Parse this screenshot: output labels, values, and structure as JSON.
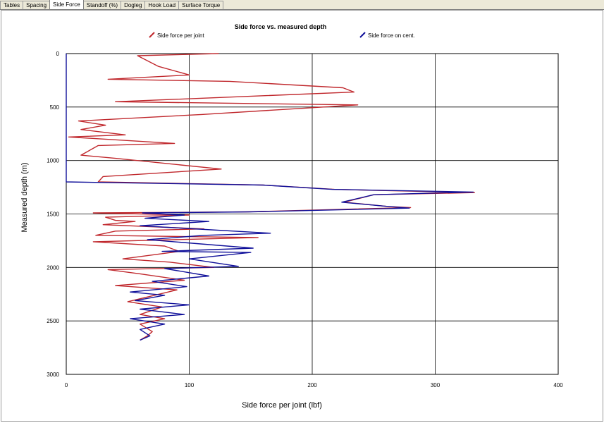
{
  "tabs": [
    {
      "label": "Tables",
      "active": false
    },
    {
      "label": "Spacing",
      "active": false
    },
    {
      "label": "Side Force",
      "active": true
    },
    {
      "label": "Standoff (%)",
      "active": false
    },
    {
      "label": "Dogleg",
      "active": false
    },
    {
      "label": "Hook Load",
      "active": false
    },
    {
      "label": "Surface Torque",
      "active": false
    }
  ],
  "chart_data": {
    "type": "line",
    "title": "Side force vs. measured depth",
    "xlabel": "Side force per joint (lbf)",
    "ylabel": "Measured depth (m)",
    "xlim": [
      0,
      400
    ],
    "ylim": [
      3000,
      0
    ],
    "x_ticks": [
      "0",
      "100",
      "200",
      "300",
      "400"
    ],
    "y_ticks": [
      "0",
      "500",
      "1000",
      "1500",
      "2000",
      "2500",
      "3000"
    ],
    "y_tick_values": [
      0,
      500,
      1000,
      1500,
      2000,
      2500,
      3000
    ],
    "x_tick_values": [
      0,
      100,
      200,
      300,
      400
    ],
    "grid": true,
    "legend_position": "top",
    "series": [
      {
        "name": "Side force per joint",
        "color": "#c0282d",
        "points": [
          [
            124,
            0
          ],
          [
            58,
            20
          ],
          [
            75,
            120
          ],
          [
            100,
            200
          ],
          [
            34,
            240
          ],
          [
            133,
            260
          ],
          [
            225,
            320
          ],
          [
            234,
            360
          ],
          [
            40,
            450
          ],
          [
            237,
            480
          ],
          [
            110,
            570
          ],
          [
            10,
            630
          ],
          [
            32,
            670
          ],
          [
            12,
            710
          ],
          [
            48,
            760
          ],
          [
            2,
            780
          ],
          [
            88,
            840
          ],
          [
            26,
            860
          ],
          [
            12,
            950
          ],
          [
            40,
            980
          ],
          [
            126,
            1080
          ],
          [
            30,
            1150
          ],
          [
            26,
            1200
          ],
          [
            160,
            1230
          ],
          [
            218,
            1270
          ],
          [
            332,
            1300
          ],
          [
            250,
            1320
          ],
          [
            226,
            1390
          ],
          [
            262,
            1430
          ],
          [
            280,
            1440
          ],
          [
            146,
            1480
          ],
          [
            22,
            1490
          ],
          [
            100,
            1510
          ],
          [
            32,
            1530
          ],
          [
            40,
            1560
          ],
          [
            56,
            1570
          ],
          [
            30,
            1600
          ],
          [
            112,
            1640
          ],
          [
            40,
            1660
          ],
          [
            24,
            1700
          ],
          [
            156,
            1720
          ],
          [
            22,
            1760
          ],
          [
            80,
            1800
          ],
          [
            92,
            1850
          ],
          [
            46,
            1920
          ],
          [
            84,
            1950
          ],
          [
            120,
            2000
          ],
          [
            34,
            2020
          ],
          [
            60,
            2060
          ],
          [
            96,
            2120
          ],
          [
            40,
            2170
          ],
          [
            90,
            2210
          ],
          [
            50,
            2320
          ],
          [
            78,
            2370
          ],
          [
            60,
            2440
          ],
          [
            80,
            2480
          ],
          [
            60,
            2530
          ],
          [
            70,
            2600
          ],
          [
            66,
            2640
          ],
          [
            60,
            2680
          ]
        ]
      },
      {
        "name": "Side force on cent.",
        "color": "#10109a",
        "points": [
          [
            0,
            0
          ],
          [
            0,
            1200
          ],
          [
            160,
            1230
          ],
          [
            216,
            1270
          ],
          [
            331,
            1295
          ],
          [
            250,
            1320
          ],
          [
            224,
            1390
          ],
          [
            262,
            1430
          ],
          [
            279,
            1445
          ],
          [
            150,
            1480
          ],
          [
            62,
            1490
          ],
          [
            96,
            1510
          ],
          [
            64,
            1540
          ],
          [
            116,
            1570
          ],
          [
            60,
            1610
          ],
          [
            166,
            1680
          ],
          [
            112,
            1700
          ],
          [
            66,
            1740
          ],
          [
            152,
            1820
          ],
          [
            78,
            1850
          ],
          [
            150,
            1860
          ],
          [
            100,
            1920
          ],
          [
            140,
            1990
          ],
          [
            80,
            2010
          ],
          [
            116,
            2080
          ],
          [
            70,
            2130
          ],
          [
            98,
            2180
          ],
          [
            52,
            2230
          ],
          [
            80,
            2260
          ],
          [
            56,
            2310
          ],
          [
            100,
            2350
          ],
          [
            60,
            2390
          ],
          [
            96,
            2440
          ],
          [
            52,
            2480
          ],
          [
            80,
            2530
          ],
          [
            60,
            2580
          ],
          [
            68,
            2640
          ],
          [
            60,
            2680
          ]
        ]
      }
    ]
  }
}
